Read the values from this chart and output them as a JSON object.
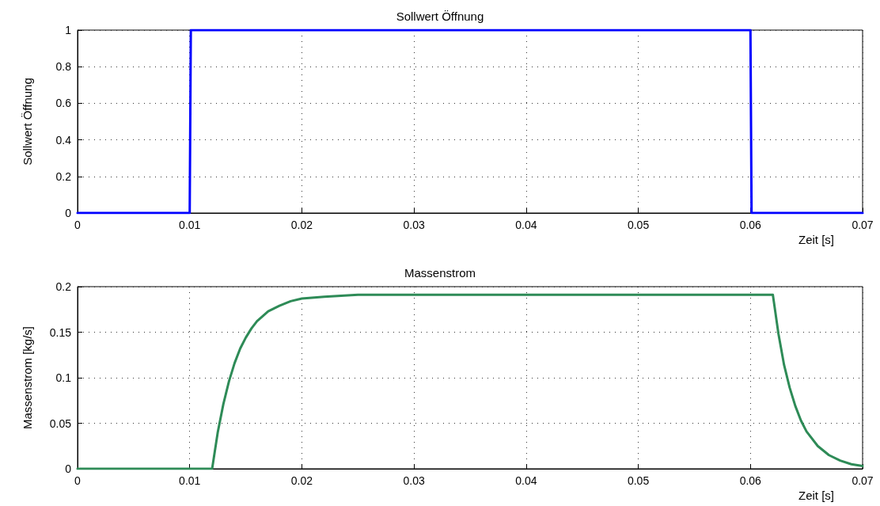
{
  "chart_data": [
    {
      "type": "line",
      "title": "Sollwert Öffnung",
      "xlabel": "Zeit [s]",
      "ylabel": "Sollwert Öffnung",
      "x": [
        0,
        0.01,
        0.0101,
        0.06,
        0.0601,
        0.07
      ],
      "series": [
        {
          "color": "#0000ff",
          "values": [
            0,
            0,
            1,
            1,
            0,
            0
          ]
        }
      ],
      "xlim": [
        0,
        0.07
      ],
      "ylim": [
        0,
        1
      ],
      "xticks": [
        0,
        0.01,
        0.02,
        0.03,
        0.04,
        0.05,
        0.06,
        0.07
      ],
      "yticks": [
        0,
        0.2,
        0.4,
        0.6,
        0.8,
        1
      ],
      "grid": true
    },
    {
      "type": "line",
      "title": "Massenstrom",
      "xlabel": "Zeit [s]",
      "ylabel": "Massenstrom [kg/s]",
      "x": [
        0,
        0.012,
        0.0125,
        0.013,
        0.0135,
        0.014,
        0.0145,
        0.015,
        0.0155,
        0.016,
        0.017,
        0.018,
        0.019,
        0.02,
        0.022,
        0.025,
        0.062,
        0.0625,
        0.063,
        0.0635,
        0.064,
        0.0645,
        0.065,
        0.066,
        0.067,
        0.068,
        0.069,
        0.07
      ],
      "series": [
        {
          "color": "#2e8b57",
          "values": [
            0,
            0,
            0.04,
            0.071,
            0.096,
            0.116,
            0.132,
            0.144,
            0.154,
            0.162,
            0.173,
            0.179,
            0.184,
            0.187,
            0.189,
            0.191,
            0.191,
            0.148,
            0.114,
            0.089,
            0.069,
            0.053,
            0.041,
            0.025,
            0.015,
            0.009,
            0.005,
            0.003
          ]
        }
      ],
      "xlim": [
        0,
        0.07
      ],
      "ylim": [
        0,
        0.2
      ],
      "xticks": [
        0,
        0.01,
        0.02,
        0.03,
        0.04,
        0.05,
        0.06,
        0.07
      ],
      "yticks": [
        0,
        0.05,
        0.1,
        0.15,
        0.2
      ],
      "grid": true
    }
  ]
}
